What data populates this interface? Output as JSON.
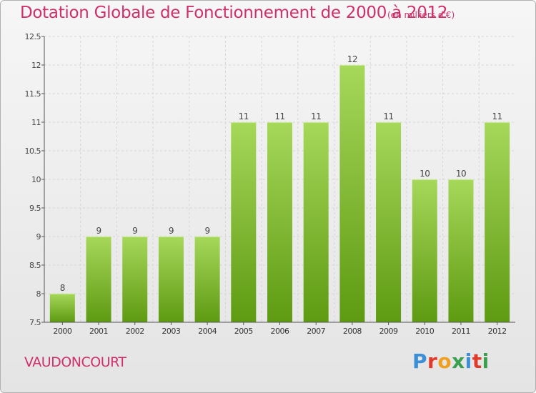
{
  "header": {
    "title": "Dotation Globale de Fonctionnement de 2000 à 2012",
    "subtitle": "(en milliers d'€)"
  },
  "footer": {
    "commune": "VAUDONCOURT",
    "logo_text": "Proxiti",
    "logo_colors": [
      "#3a8fd8",
      "#e03a2a",
      "#f0a020",
      "#3aa050",
      "#3a8fd8",
      "#e03a2a",
      "#3aa050"
    ]
  },
  "colors": {
    "title": "#d0306a",
    "bar_light": "#a6d85a",
    "bar_dark": "#5e9a12",
    "grid": "#d6d6d6"
  },
  "chart_data": {
    "type": "bar",
    "title": "Dotation Globale de Fonctionnement de 2000 à 2012",
    "subtitle": "(en milliers d'€)",
    "xlabel": "",
    "ylabel": "",
    "categories": [
      "2000",
      "2001",
      "2002",
      "2003",
      "2004",
      "2005",
      "2006",
      "2007",
      "2008",
      "2009",
      "2010",
      "2011",
      "2012"
    ],
    "values": [
      8,
      9,
      9,
      9,
      9,
      11,
      11,
      11,
      12,
      11,
      10,
      10,
      11
    ],
    "data_labels": [
      "8",
      "9",
      "9",
      "9",
      "9",
      "11",
      "11",
      "11",
      "12",
      "11",
      "10",
      "10",
      "11"
    ],
    "ylim": [
      7.5,
      12.5
    ],
    "yticks": [
      7.5,
      8,
      8.5,
      9,
      9.5,
      10,
      10.5,
      11,
      11.5,
      12,
      12.5
    ],
    "ytick_labels": [
      "7.5",
      "8",
      "8.5",
      "9",
      "9.5",
      "10",
      "10.5",
      "11",
      "11.5",
      "12",
      "12.5"
    ],
    "grid": true,
    "legend": "none"
  }
}
